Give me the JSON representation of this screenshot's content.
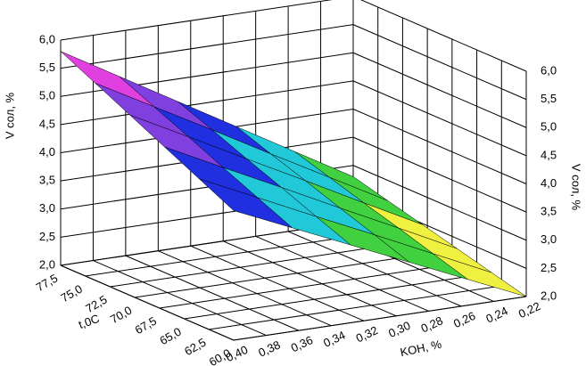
{
  "chart_data": {
    "type": "surface",
    "x_label": "t,0C",
    "y_label": "KOH, %",
    "z_label": "V сол, %",
    "x": [
      60,
      63.5,
      67,
      70.5,
      74,
      77.5
    ],
    "y": [
      0.4,
      0.364,
      0.328,
      0.292,
      0.256,
      0.22
    ],
    "z": [
      [
        4.3,
        3.84,
        3.38,
        2.92,
        2.46,
        2.0
      ],
      [
        4.6,
        4.11,
        3.62,
        3.14,
        2.65,
        2.16
      ],
      [
        4.9,
        4.38,
        3.87,
        3.35,
        2.84,
        2.32
      ],
      [
        5.2,
        4.66,
        4.11,
        3.57,
        3.02,
        2.48
      ],
      [
        5.5,
        4.93,
        4.36,
        3.78,
        3.21,
        2.64
      ],
      [
        5.8,
        5.2,
        4.6,
        4.0,
        3.4,
        2.8
      ]
    ],
    "xlim": [
      60,
      77.5
    ],
    "ylim": [
      0.4,
      0.22
    ],
    "zlim": [
      2,
      6
    ],
    "xticks": [
      {
        "value": 77.5,
        "label": "77,5"
      },
      {
        "value": 75,
        "label": "75,0"
      },
      {
        "value": 72.5,
        "label": "72,5"
      },
      {
        "value": 70,
        "label": "70,0"
      },
      {
        "value": 67.5,
        "label": "67,5"
      },
      {
        "value": 65,
        "label": "65,0"
      },
      {
        "value": 62.5,
        "label": "62,5"
      },
      {
        "value": 60,
        "label": "60,0"
      }
    ],
    "yticks": [
      {
        "value": 0.4,
        "label": "0,40"
      },
      {
        "value": 0.38,
        "label": "0,38"
      },
      {
        "value": 0.36,
        "label": "0,36"
      },
      {
        "value": 0.34,
        "label": "0,34"
      },
      {
        "value": 0.32,
        "label": "0,32"
      },
      {
        "value": 0.3,
        "label": "0,30"
      },
      {
        "value": 0.28,
        "label": "0,28"
      },
      {
        "value": 0.26,
        "label": "0,26"
      },
      {
        "value": 0.24,
        "label": "0,24"
      },
      {
        "value": 0.22,
        "label": "0,22"
      }
    ],
    "zticks": [
      {
        "value": 2,
        "label": "2,0"
      },
      {
        "value": 2.5,
        "label": "2,5"
      },
      {
        "value": 3,
        "label": "3,0"
      },
      {
        "value": 3.5,
        "label": "3,5"
      },
      {
        "value": 4,
        "label": "4,0"
      },
      {
        "value": 4.5,
        "label": "4,5"
      },
      {
        "value": 5,
        "label": "5,0"
      },
      {
        "value": 5.5,
        "label": "5,5"
      },
      {
        "value": 6,
        "label": "6,0"
      }
    ],
    "grid": true,
    "colors": [
      "#f0f040",
      "#40d040",
      "#20c8d8",
      "#2030e0",
      "#8040e0",
      "#e040e0"
    ]
  }
}
